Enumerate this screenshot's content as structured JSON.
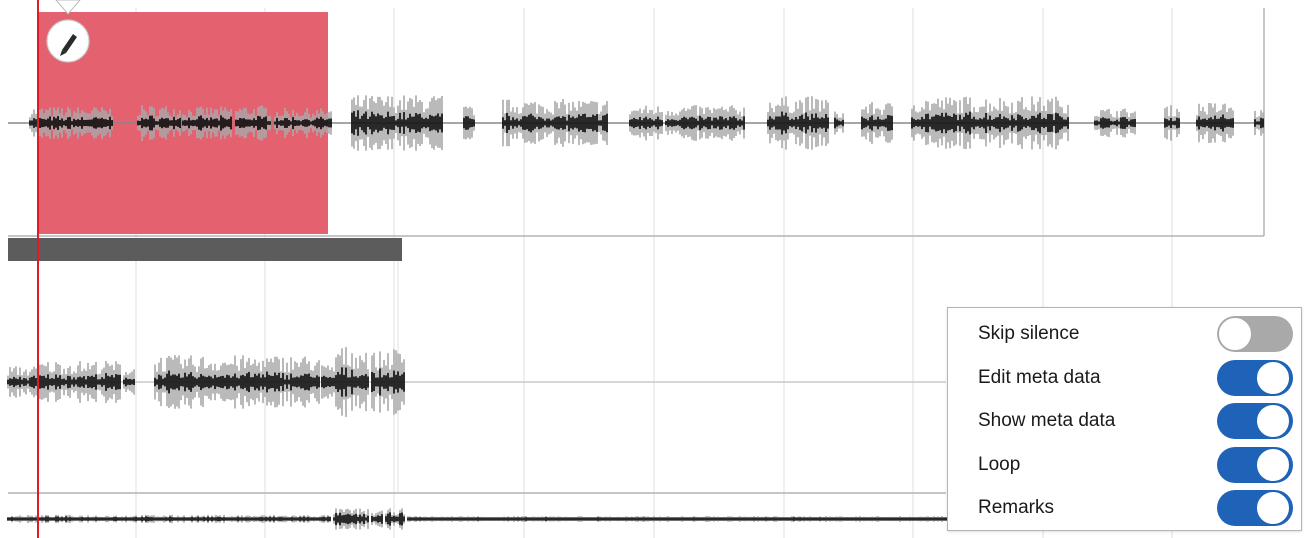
{
  "colors": {
    "selection": "#e46270",
    "playhead": "#e11a2a",
    "bar": "#5c5c5c",
    "grid": "#e4e4e4",
    "track_border": "#b4b4b4",
    "wave_dark": "#000000",
    "wave_light": "#a9a9a9",
    "toggle_on": "#1e63b8",
    "toggle_off": "#a9a9a9"
  },
  "icons": {
    "edit": "pencil-icon"
  },
  "settings": [
    {
      "label": "Skip silence",
      "on": false
    },
    {
      "label": "Edit meta data",
      "on": true
    },
    {
      "label": "Show meta data",
      "on": true
    },
    {
      "label": "Loop",
      "on": true
    },
    {
      "label": "Remarks",
      "on": true
    }
  ]
}
